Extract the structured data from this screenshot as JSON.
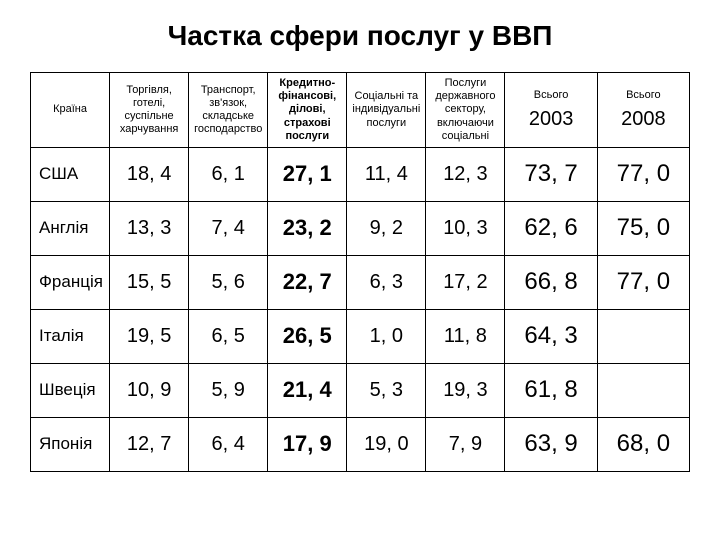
{
  "title": "Частка сфери послуг у ВВП",
  "columns": [
    "Країна",
    "Торгівля, готелі, суспільне харчування",
    "Транспорт, зв'язок, складське господарство",
    "Кредитно-фінансові, ділові, страхові послуги",
    "Соціальні та індивідуальні послуги",
    "Послуги державного сектору, включаючи соціальні"
  ],
  "year_label": "Всього",
  "year1": "2003",
  "year2": "2008",
  "rows": [
    {
      "country": "США",
      "c1": "18, 4",
      "c2": "6, 1",
      "c3": "27, 1",
      "c4": "11, 4",
      "c5": "12, 3",
      "t1": "73, 7",
      "t2": "77, 0"
    },
    {
      "country": "Англія",
      "c1": "13, 3",
      "c2": "7, 4",
      "c3": "23, 2",
      "c4": "9, 2",
      "c5": "10, 3",
      "t1": "62, 6",
      "t2": "75, 0"
    },
    {
      "country": "Франція",
      "c1": "15, 5",
      "c2": "5, 6",
      "c3": "22, 7",
      "c4": "6, 3",
      "c5": "17, 2",
      "t1": "66, 8",
      "t2": "77, 0"
    },
    {
      "country": "Італія",
      "c1": "19, 5",
      "c2": "6, 5",
      "c3": "26, 5",
      "c4": "1, 0",
      "c5": "11, 8",
      "t1": "64, 3",
      "t2": ""
    },
    {
      "country": "Швеція",
      "c1": "10, 9",
      "c2": "5, 9",
      "c3": "21, 4",
      "c4": "5, 3",
      "c5": "19, 3",
      "t1": "61, 8",
      "t2": ""
    },
    {
      "country": "Японія",
      "c1": "12, 7",
      "c2": "6, 4",
      "c3": "17, 9",
      "c4": "19, 0",
      "c5": "7, 9",
      "t1": "63, 9",
      "t2": "68, 0"
    }
  ]
}
